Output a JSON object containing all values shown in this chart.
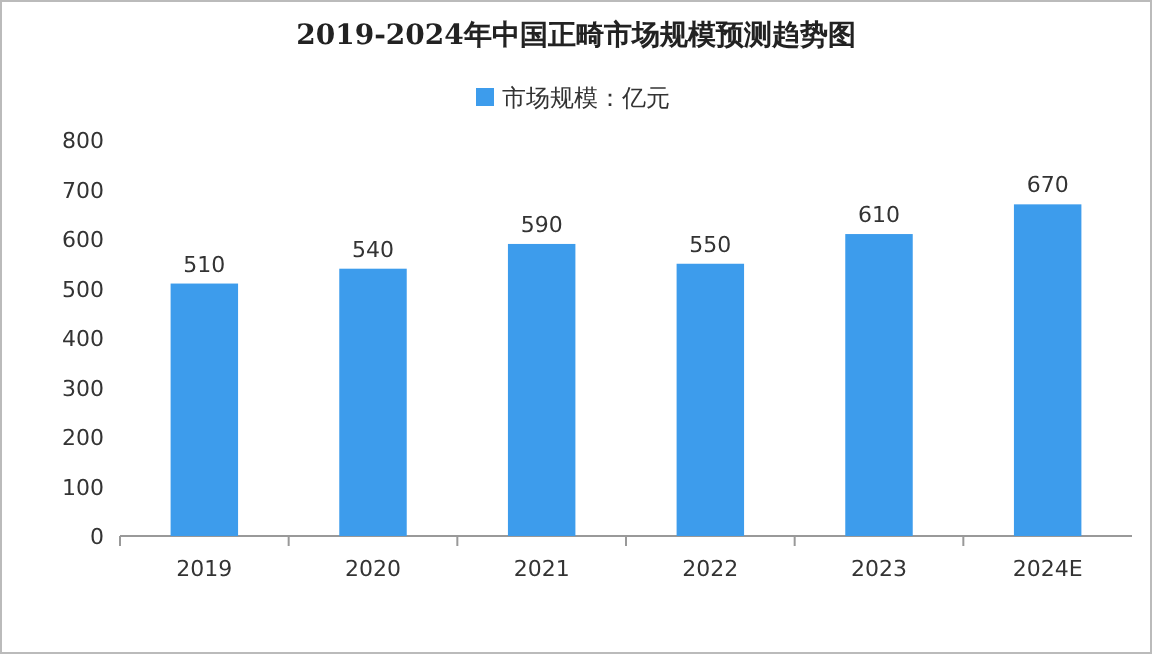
{
  "chart_data": {
    "type": "bar",
    "title": "2019-2024年中国正畸市场规模预测趋势图",
    "categories": [
      "2019",
      "2020",
      "2021",
      "2022",
      "2023",
      "2024E"
    ],
    "series": [
      {
        "name": "市场规模：亿元",
        "color": "#3d9cec",
        "values": [
          510,
          540,
          590,
          550,
          610,
          670
        ]
      }
    ],
    "ylim": [
      0,
      800
    ],
    "yticks": [
      0,
      100,
      200,
      300,
      400,
      500,
      600,
      700,
      800
    ],
    "grid": false,
    "legend": "top",
    "data_labels": true
  }
}
